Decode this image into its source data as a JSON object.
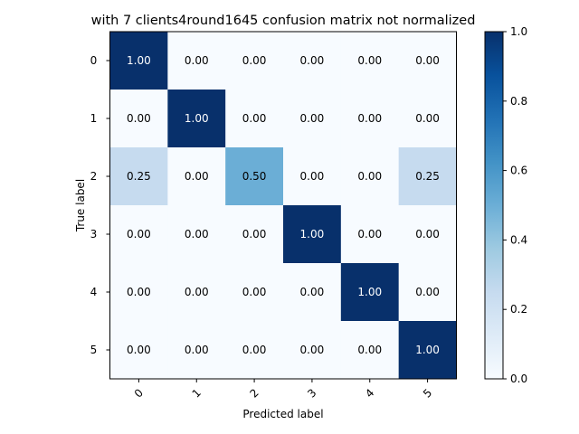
{
  "chart_data": {
    "type": "heatmap",
    "title": "with 7 clients4round1645 confusion matrix not normalized",
    "xlabel": "Predicted label",
    "ylabel": "True label",
    "x_categories": [
      "0",
      "1",
      "2",
      "3",
      "4",
      "5"
    ],
    "y_categories": [
      "0",
      "1",
      "2",
      "3",
      "4",
      "5"
    ],
    "values": [
      [
        1.0,
        0.0,
        0.0,
        0.0,
        0.0,
        0.0
      ],
      [
        0.0,
        1.0,
        0.0,
        0.0,
        0.0,
        0.0
      ],
      [
        0.25,
        0.0,
        0.5,
        0.0,
        0.0,
        0.25
      ],
      [
        0.0,
        0.0,
        0.0,
        1.0,
        0.0,
        0.0
      ],
      [
        0.0,
        0.0,
        0.0,
        0.0,
        1.0,
        0.0
      ],
      [
        0.0,
        0.0,
        0.0,
        0.0,
        0.0,
        1.0
      ]
    ],
    "cell_labels": [
      [
        "1.00",
        "0.00",
        "0.00",
        "0.00",
        "0.00",
        "0.00"
      ],
      [
        "0.00",
        "1.00",
        "0.00",
        "0.00",
        "0.00",
        "0.00"
      ],
      [
        "0.25",
        "0.00",
        "0.50",
        "0.00",
        "0.00",
        "0.25"
      ],
      [
        "0.00",
        "0.00",
        "0.00",
        "1.00",
        "0.00",
        "0.00"
      ],
      [
        "0.00",
        "0.00",
        "0.00",
        "0.00",
        "1.00",
        "0.00"
      ],
      [
        "0.00",
        "0.00",
        "0.00",
        "0.00",
        "0.00",
        "1.00"
      ]
    ],
    "colorbar": {
      "range": [
        0.0,
        1.0
      ],
      "ticks": [
        0.0,
        0.2,
        0.4,
        0.6,
        0.8,
        1.0
      ],
      "tick_labels": [
        "0.0",
        "0.2",
        "0.4",
        "0.6",
        "0.8",
        "1.0"
      ],
      "colormap": "Blues"
    },
    "x_tick_rotation": "45 degrees",
    "grid": false
  }
}
